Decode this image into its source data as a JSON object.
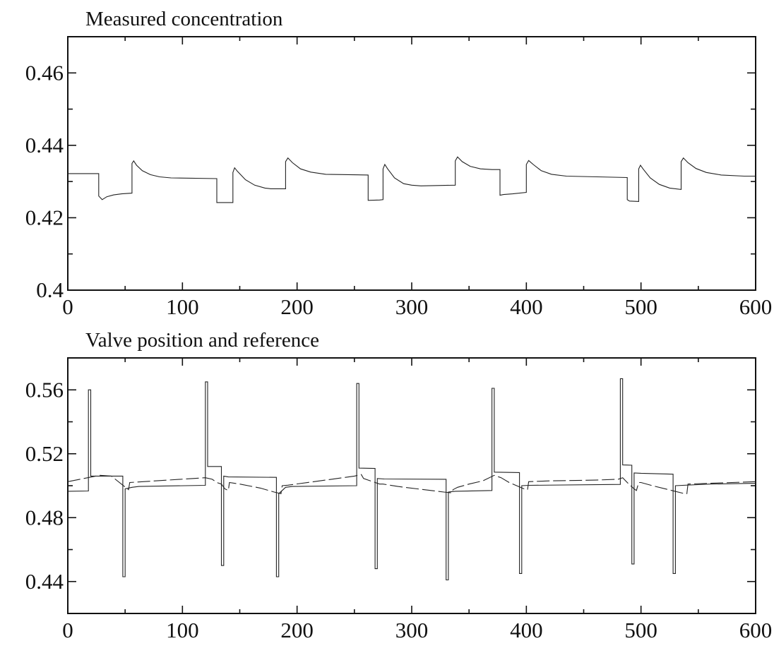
{
  "chart_data": [
    {
      "type": "line",
      "title": "Measured concentration",
      "xlabel": "",
      "ylabel": "",
      "xlim": [
        0,
        600
      ],
      "ylim": [
        0.4,
        0.47
      ],
      "xticks": [
        0,
        100,
        200,
        300,
        400,
        500,
        600
      ],
      "xtick_labels": [
        "0",
        "100",
        "200",
        "300",
        "400",
        "500",
        "600"
      ],
      "yticks": [
        0.4,
        0.42,
        0.44,
        0.46
      ],
      "ytick_labels": [
        "0.4",
        "0.42",
        "0.44",
        "0.46"
      ],
      "grid": false,
      "series": [
        {
          "style": "solid",
          "points": [
            [
              0,
              0.4322
            ],
            [
              27,
              0.4322
            ],
            [
              27,
              0.426
            ],
            [
              30,
              0.425
            ],
            [
              34,
              0.4258
            ],
            [
              40,
              0.4263
            ],
            [
              47,
              0.4266
            ],
            [
              56,
              0.4268
            ],
            [
              56,
              0.435
            ],
            [
              57.5,
              0.4357
            ],
            [
              60,
              0.4345
            ],
            [
              65,
              0.433
            ],
            [
              72,
              0.4319
            ],
            [
              80,
              0.4313
            ],
            [
              90,
              0.431
            ],
            [
              130,
              0.4308
            ],
            [
              130,
              0.4242
            ],
            [
              144,
              0.4242
            ],
            [
              144,
              0.4325
            ],
            [
              145.5,
              0.4338
            ],
            [
              148,
              0.4328
            ],
            [
              155,
              0.4305
            ],
            [
              163,
              0.429
            ],
            [
              172,
              0.4282
            ],
            [
              177,
              0.428
            ],
            [
              190,
              0.428
            ],
            [
              190,
              0.4355
            ],
            [
              192,
              0.4365
            ],
            [
              196,
              0.4352
            ],
            [
              203,
              0.4335
            ],
            [
              212,
              0.4326
            ],
            [
              225,
              0.432
            ],
            [
              262,
              0.4318
            ],
            [
              262,
              0.4248
            ],
            [
              272,
              0.4249
            ],
            [
              275,
              0.425
            ],
            [
              275,
              0.4335
            ],
            [
              276.5,
              0.4347
            ],
            [
              279,
              0.4335
            ],
            [
              285,
              0.431
            ],
            [
              293,
              0.4294
            ],
            [
              300,
              0.429
            ],
            [
              308,
              0.4288
            ],
            [
              338,
              0.429
            ],
            [
              338,
              0.4357
            ],
            [
              340,
              0.4368
            ],
            [
              344,
              0.4355
            ],
            [
              351,
              0.4342
            ],
            [
              360,
              0.4335
            ],
            [
              370,
              0.4333
            ],
            [
              377,
              0.4333
            ],
            [
              377,
              0.4262
            ],
            [
              380,
              0.4264
            ],
            [
              388,
              0.4266
            ],
            [
              400,
              0.427
            ],
            [
              400,
              0.4347
            ],
            [
              402,
              0.4358
            ],
            [
              406,
              0.4347
            ],
            [
              413,
              0.433
            ],
            [
              422,
              0.432
            ],
            [
              435,
              0.4315
            ],
            [
              488,
              0.4311
            ],
            [
              488,
              0.425
            ],
            [
              490,
              0.4246
            ],
            [
              498,
              0.4245
            ],
            [
              498,
              0.4335
            ],
            [
              499.5,
              0.4345
            ],
            [
              502,
              0.4334
            ],
            [
              508,
              0.431
            ],
            [
              516,
              0.4292
            ],
            [
              525,
              0.4282
            ],
            [
              535,
              0.4278
            ],
            [
              535,
              0.4355
            ],
            [
              537,
              0.4365
            ],
            [
              541,
              0.4352
            ],
            [
              548,
              0.4336
            ],
            [
              557,
              0.4325
            ],
            [
              570,
              0.4318
            ],
            [
              590,
              0.4315
            ],
            [
              600,
              0.4315
            ]
          ]
        }
      ]
    },
    {
      "type": "line",
      "title": "Valve position and reference",
      "xlabel": "",
      "ylabel": "",
      "xlim": [
        0,
        600
      ],
      "ylim": [
        0.42,
        0.58
      ],
      "xticks": [
        0,
        100,
        200,
        300,
        400,
        500,
        600
      ],
      "xtick_labels": [
        "0",
        "100",
        "200",
        "300",
        "400",
        "500",
        "600"
      ],
      "yticks": [
        0.44,
        0.48,
        0.52,
        0.56
      ],
      "ytick_labels": [
        "0.44",
        "0.48",
        "0.52",
        "0.56"
      ],
      "grid": false,
      "series": [
        {
          "style": "solid",
          "points": [
            [
              0,
              0.4965
            ],
            [
              18,
              0.4967
            ],
            [
              18,
              0.56
            ],
            [
              20,
              0.56
            ],
            [
              20,
              0.506
            ],
            [
              48,
              0.506
            ],
            [
              48,
              0.443
            ],
            [
              50,
              0.443
            ],
            [
              50,
              0.498
            ],
            [
              56,
              0.499
            ],
            [
              62,
              0.4995
            ],
            [
              120,
              0.5002
            ],
            [
              120,
              0.565
            ],
            [
              122,
              0.565
            ],
            [
              122,
              0.512
            ],
            [
              134,
              0.512
            ],
            [
              134,
              0.45
            ],
            [
              136,
              0.45
            ],
            [
              136,
              0.506
            ],
            [
              140,
              0.5055
            ],
            [
              182,
              0.5052
            ],
            [
              182,
              0.443
            ],
            [
              184,
              0.443
            ],
            [
              184,
              0.495
            ],
            [
              190,
              0.499
            ],
            [
              196,
              0.4995
            ],
            [
              252,
              0.5
            ],
            [
              252,
              0.564
            ],
            [
              254,
              0.564
            ],
            [
              254,
              0.511
            ],
            [
              268,
              0.5108
            ],
            [
              268,
              0.448
            ],
            [
              270,
              0.448
            ],
            [
              270,
              0.5045
            ],
            [
              276,
              0.5042
            ],
            [
              330,
              0.504
            ],
            [
              330,
              0.441
            ],
            [
              332,
              0.441
            ],
            [
              332,
              0.496
            ],
            [
              338,
              0.4965
            ],
            [
              370,
              0.497
            ],
            [
              370,
              0.561
            ],
            [
              372,
              0.561
            ],
            [
              372,
              0.5085
            ],
            [
              394,
              0.5082
            ],
            [
              394,
              0.445
            ],
            [
              396,
              0.445
            ],
            [
              396,
              0.5
            ],
            [
              402,
              0.5002
            ],
            [
              482,
              0.5008
            ],
            [
              482,
              0.567
            ],
            [
              484,
              0.567
            ],
            [
              484,
              0.513
            ],
            [
              492,
              0.5128
            ],
            [
              492,
              0.451
            ],
            [
              494,
              0.451
            ],
            [
              494,
              0.508
            ],
            [
              500,
              0.5078
            ],
            [
              528,
              0.5072
            ],
            [
              528,
              0.445
            ],
            [
              530,
              0.445
            ],
            [
              530,
              0.5
            ],
            [
              560,
              0.501
            ],
            [
              600,
              0.5015
            ]
          ]
        },
        {
          "style": "dashed",
          "points": [
            [
              0,
              0.5025
            ],
            [
              28,
              0.5065
            ],
            [
              38,
              0.506
            ],
            [
              52,
              0.498
            ],
            [
              53,
              0.4975
            ],
            [
              54,
              0.502
            ],
            [
              120,
              0.505
            ],
            [
              126,
              0.504
            ],
            [
              130,
              0.502
            ],
            [
              134,
              0.501
            ],
            [
              137,
              0.498
            ],
            [
              140,
              0.497
            ],
            [
              141,
              0.502
            ],
            [
              150,
              0.501
            ],
            [
              168,
              0.4985
            ],
            [
              180,
              0.496
            ],
            [
              186,
              0.495
            ],
            [
              187,
              0.5
            ],
            [
              192,
              0.5003
            ],
            [
              230,
              0.504
            ],
            [
              250,
              0.506
            ],
            [
              256,
              0.507
            ],
            [
              258,
              0.5045
            ],
            [
              272,
              0.501
            ],
            [
              275,
              0.501
            ],
            [
              288,
              0.4995
            ],
            [
              305,
              0.498
            ],
            [
              328,
              0.496
            ],
            [
              335,
              0.4955
            ],
            [
              336,
              0.4975
            ],
            [
              340,
              0.499
            ],
            [
              350,
              0.501
            ],
            [
              362,
              0.503
            ],
            [
              372,
              0.5065
            ],
            [
              378,
              0.505
            ],
            [
              385,
              0.502
            ],
            [
              398,
              0.498
            ],
            [
              401,
              0.4975
            ],
            [
              402,
              0.5025
            ],
            [
              420,
              0.503
            ],
            [
              460,
              0.5035
            ],
            [
              480,
              0.504
            ],
            [
              484,
              0.505
            ],
            [
              488,
              0.502
            ],
            [
              494,
              0.498
            ],
            [
              496,
              0.497
            ],
            [
              498,
              0.502
            ],
            [
              500,
              0.502
            ],
            [
              510,
              0.5
            ],
            [
              538,
              0.495
            ],
            [
              540,
              0.495
            ],
            [
              541,
              0.501
            ],
            [
              600,
              0.5025
            ]
          ]
        }
      ]
    }
  ]
}
